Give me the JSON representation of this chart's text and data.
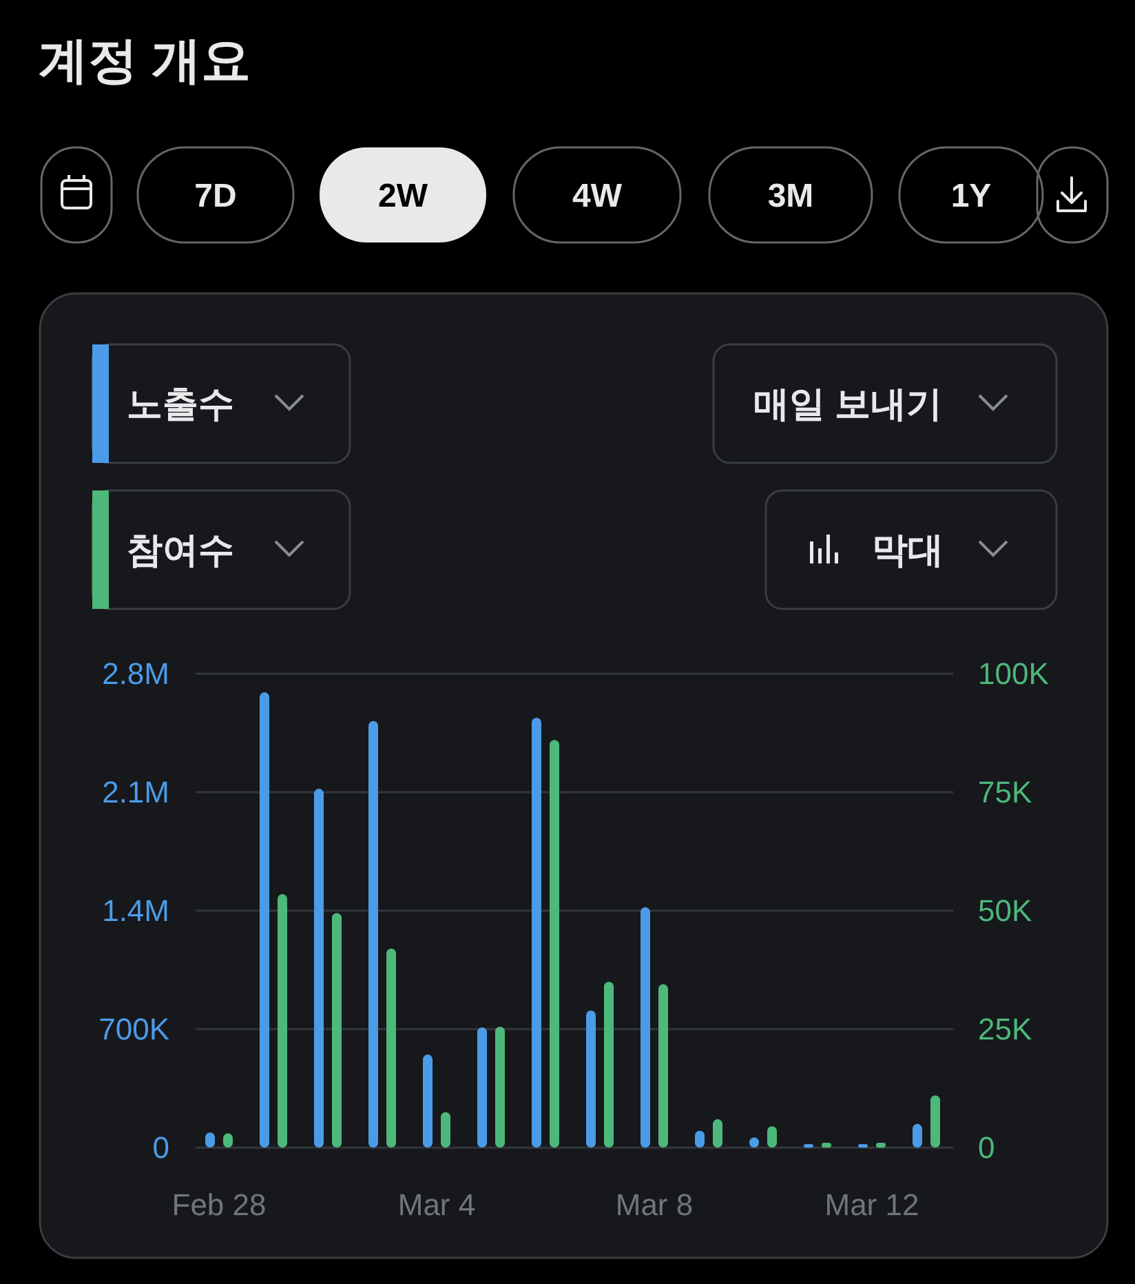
{
  "chart_data": {
    "type": "bar",
    "title": "계정 개요",
    "annotations": [
      "7D",
      "2W",
      "4W",
      "3M",
      "1Y",
      "매일 보내기",
      "막대"
    ],
    "categories": [
      "Feb 28",
      null,
      null,
      null,
      "Mar 4",
      null,
      null,
      null,
      "Mar 8",
      null,
      null,
      null,
      "Mar 12",
      null
    ],
    "series": [
      {
        "name": "노출수",
        "color": "#4c9be8",
        "values": [
          90000,
          2690000,
          2120000,
          2520000,
          550000,
          710000,
          2540000,
          810000,
          1420000,
          100000,
          60000,
          20000,
          20000,
          140000
        ]
      },
      {
        "name": "참여수",
        "color": "#4db87a",
        "axis": "y2",
        "values": [
          3000,
          53500,
          49500,
          42000,
          7500,
          25500,
          86000,
          35000,
          34500,
          6000,
          4500,
          1000,
          1000,
          11000
        ]
      }
    ],
    "ylim": [
      0,
      2800000
    ],
    "yticks": [
      0,
      {
        "value": 700000,
        "label": "700K"
      },
      {
        "value": 1400000,
        "label": "1.4M"
      },
      {
        "value": 2100000,
        "label": "2.1M"
      },
      {
        "value": 2800000,
        "label": "2.8M"
      }
    ],
    "y2lim": [
      0,
      100000
    ],
    "y2ticks": [
      0,
      {
        "value": 25000,
        "label": "25K"
      },
      {
        "value": 50000,
        "label": "50K"
      },
      {
        "value": 75000,
        "label": "75K"
      },
      {
        "value": 100000,
        "label": "100K"
      }
    ],
    "grid": "y",
    "legend": "top left"
  }
}
